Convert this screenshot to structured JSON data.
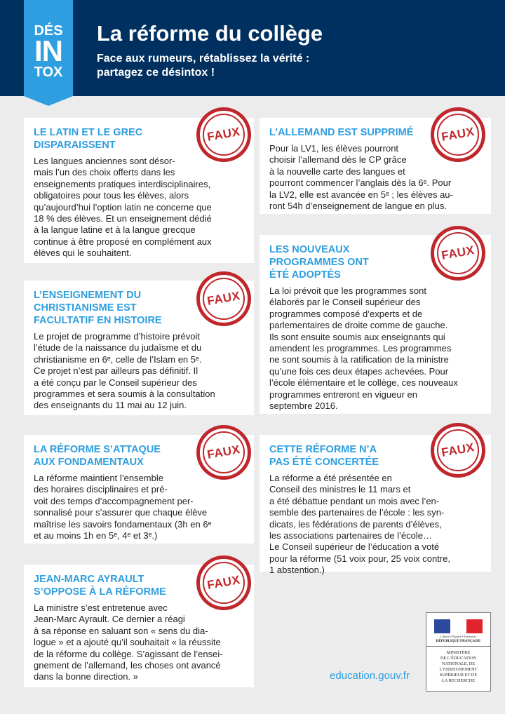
{
  "header": {
    "badge": [
      "DÉS",
      "IN",
      "TOX"
    ],
    "title": "La réforme du collège",
    "subtitle": [
      "Face aux rumeurs, rétablissez la vérité :",
      "partagez ce désintox !"
    ]
  },
  "stamp_label": "FAUX",
  "colors": {
    "header_bg": "#00305f",
    "accent": "#2e9ee0",
    "stamp": "#c0272d",
    "page_bg": "#ececec"
  },
  "cards": [
    {
      "heading": [
        "LE LATIN ET LE GREC",
        "DISPARAISSENT"
      ],
      "lines": [
        "Les langues anciennes sont désor-",
        "mais l’un des choix offerts dans les",
        "enseignements pratiques interdisciplinaires,",
        "obligatoires pour tous les élèves, alors",
        "qu’aujourd’hui l’option latin ne concerne que",
        "18 % des élèves. Et un enseignement dédié",
        "à la langue latine et à la langue grecque",
        "continue à être proposé en complément aux",
        "élèves qui le souhaitent."
      ]
    },
    {
      "heading": [
        "L’ENSEIGNEMENT DU",
        "CHRISTIANISME EST",
        "FACULTATIF EN HISTOIRE"
      ],
      "lines": [
        "Le projet de programme d’histoire prévoit",
        "l’étude de la naissance du judaïsme et du",
        "christianisme en 6ᵉ, celle de l’Islam en 5ᵉ.",
        "Ce projet n’est par ailleurs pas définitif. Il",
        "a été conçu par le Conseil supérieur des",
        "programmes et sera soumis à la consultation",
        "des enseignants du 11 mai au 12 juin."
      ]
    },
    {
      "heading": [
        "LA RÉFORME S’ATTAQUE",
        "AUX FONDAMENTAUX"
      ],
      "lines": [
        "La réforme maintient l’ensemble",
        "des horaires disciplinaires et pré-",
        "voit des temps d’accompagnement per-",
        "sonnalisé pour s’assurer que chaque élève",
        "maîtrise les savoirs fondamentaux (3h en 6ᵉ",
        "et au moins 1h en 5ᵉ, 4ᵉ et 3ᵉ.)"
      ]
    },
    {
      "heading": [
        "JEAN-MARC AYRAULT",
        "S’OPPOSE À LA RÉFORME"
      ],
      "lines": [
        "La ministre s’est entretenue avec",
        "Jean-Marc Ayrault. Ce dernier a réagi",
        "à sa réponse en saluant son « sens du dia-",
        "logue » et a ajouté qu’il souhaitait « la réussite",
        "de la réforme du collège. S’agissant de l’ensei-",
        "gnement de l’allemand, les choses ont avancé",
        "dans la bonne direction. »"
      ]
    },
    {
      "heading": [
        "L’ALLEMAND EST SUPPRIMÉ"
      ],
      "lines": [
        "Pour la LV1, les élèves pourront",
        "choisir l’allemand dès le CP grâce",
        "à la nouvelle carte des langues et",
        "pourront commencer l’anglais dès la 6ᵉ. Pour",
        "la LV2, elle est avancée en 5ᵉ ; les élèves au-",
        "ront 54h d’enseignement de langue en plus."
      ]
    },
    {
      "heading": [
        "LES NOUVEAUX",
        "PROGRAMMES ONT",
        "ÉTÉ ADOPTÉS"
      ],
      "lines": [
        "La loi prévoit que les programmes sont",
        "élaborés par le Conseil supérieur des",
        "programmes composé d’experts et de",
        "parlementaires de droite comme de gauche.",
        "Ils sont ensuite soumis aux enseignants qui",
        "amendent les programmes. Les programmes",
        "ne sont soumis à la ratification de la ministre",
        "qu’une fois ces deux étapes achevées. Pour",
        "l’école élémentaire et le collège, ces nouveaux",
        "programmes entreront en vigueur en",
        "septembre 2016."
      ]
    },
    {
      "heading": [
        "CETTE RÉFORME N’A",
        "PAS ÉTÉ CONCERTÉE"
      ],
      "lines": [
        "La réforme a été présentée en",
        "Conseil des ministres le 11 mars et",
        "a été débattue pendant un mois avec l’en-",
        "semble des partenaires de l’école : les syn-",
        "dicats, les fédérations de parents d’élèves,",
        "les associations partenaires de l’école…",
        "Le Conseil supérieur de l’éducation a voté",
        "pour la réforme (51 voix pour, 25 voix contre,",
        "1 abstention.)"
      ]
    }
  ],
  "footer": {
    "site": "education.gouv.fr",
    "logo": {
      "motto": "Liberté • Égalité • Fraternité",
      "republic": "RÉPUBLIQUE FRANÇAISE",
      "ministry": [
        "MINISTÈRE",
        "DE L’ÉDUCATION",
        "NATIONALE, DE",
        "L’ENSEIGNEMENT",
        "SUPÉRIEUR ET DE",
        "LA RECHERCHE"
      ]
    }
  }
}
